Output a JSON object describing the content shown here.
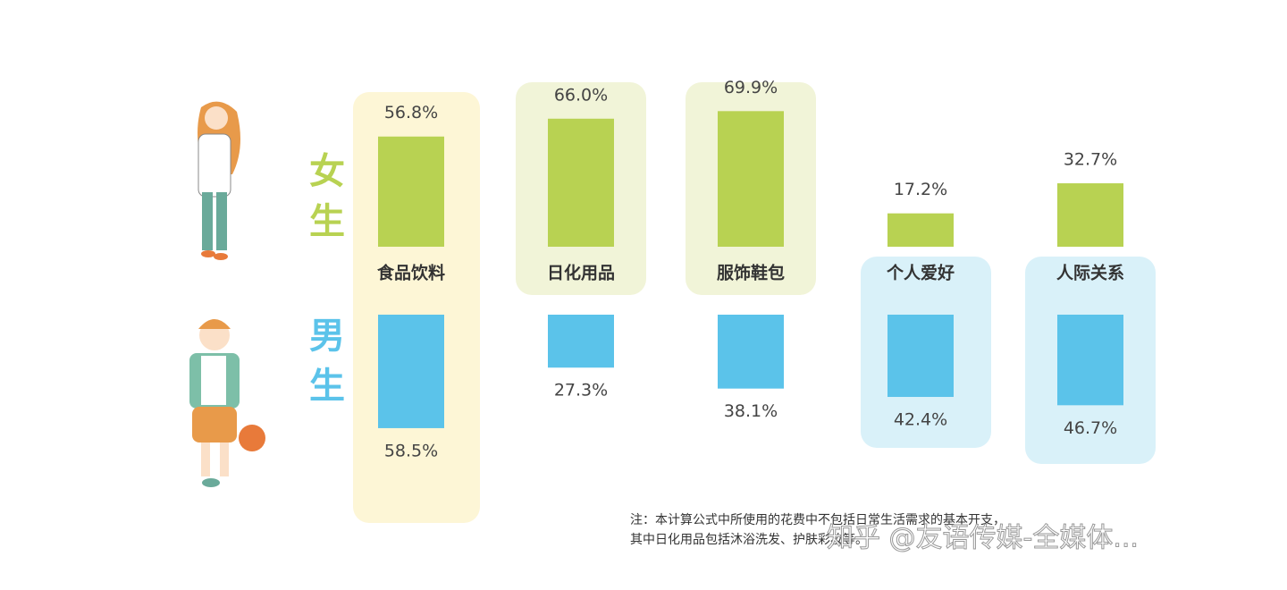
{
  "chart_data": {
    "type": "diverging-bar",
    "categories": [
      "食品饮料",
      "日化用品",
      "服饰鞋包",
      "个人爱好",
      "人际关系"
    ],
    "series": [
      {
        "name": "女生",
        "color": "#b8d252",
        "values": [
          56.8,
          66.0,
          69.9,
          17.2,
          32.7
        ],
        "value_labels": [
          "56.8%",
          "66.0%",
          "69.9%",
          "17.2%",
          "32.7%"
        ]
      },
      {
        "name": "男生",
        "color": "#5bc3ea",
        "values": [
          58.5,
          27.3,
          38.1,
          42.4,
          46.7
        ],
        "value_labels": [
          "58.5%",
          "27.3%",
          "38.1%",
          "42.4%",
          "46.7%"
        ]
      }
    ],
    "note": [
      "注：本计算公式中所使用的花费中不包括日常生活需求的基本开支，",
      "其中日化用品包括沐浴洗发、护肤彩妆等。"
    ],
    "watermark": "知乎 @友语传媒-全媒体..."
  }
}
